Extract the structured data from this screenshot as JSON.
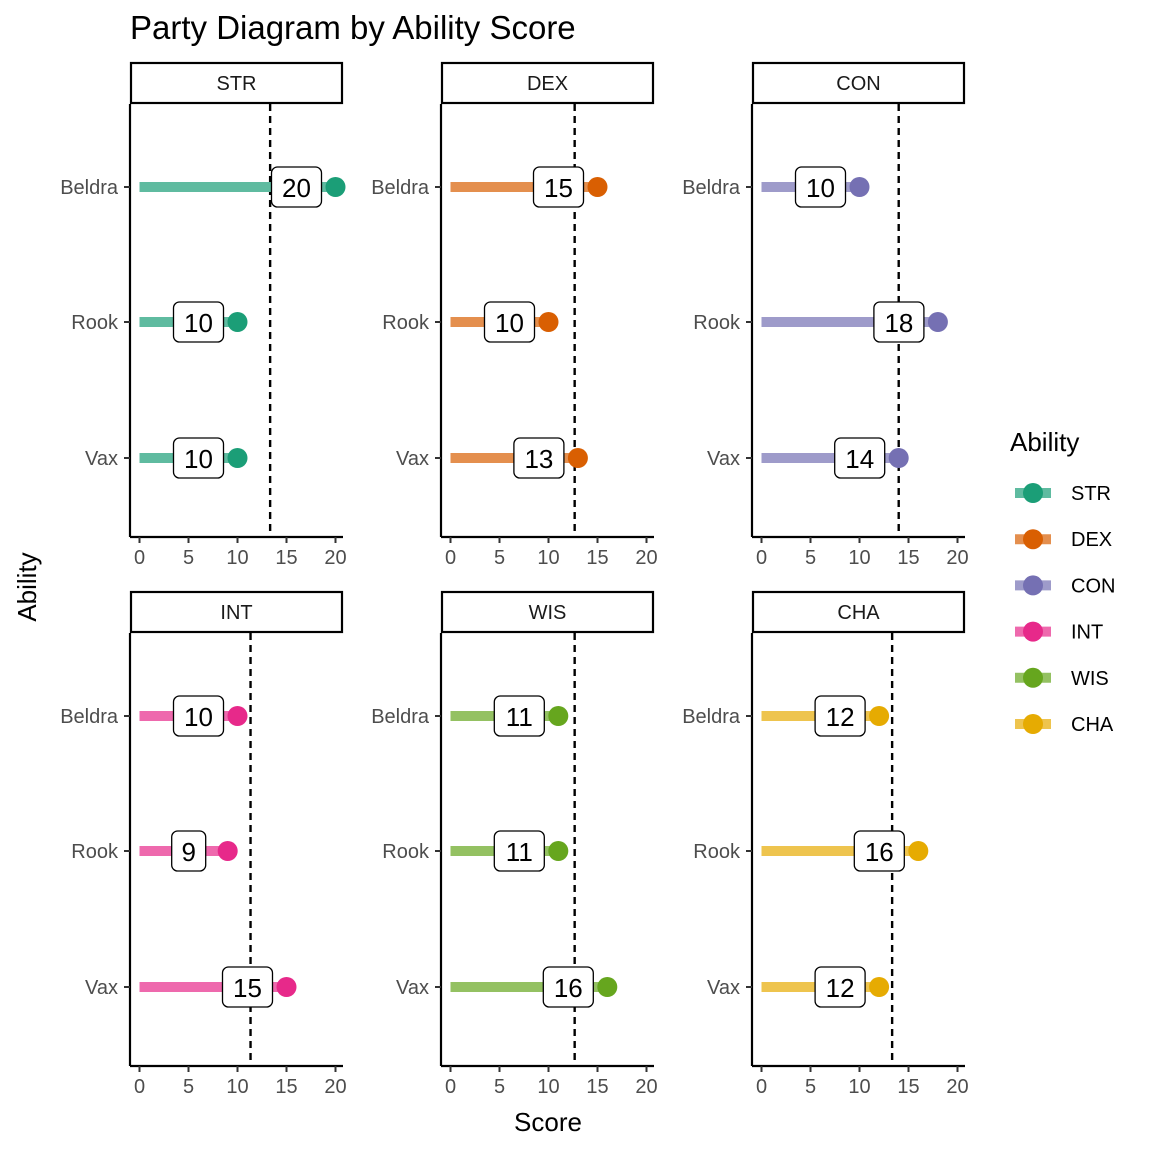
{
  "chart_data": {
    "type": "lollipop",
    "title": "Party Diagram by Ability Score",
    "xlabel": "Score",
    "ylabel": "Ability",
    "xlim": [
      0,
      20
    ],
    "x_ticks": [
      "0",
      "5",
      "10",
      "15",
      "20"
    ],
    "categories": [
      "Beldra",
      "Rook",
      "Vax"
    ],
    "legend": {
      "title": "Ability",
      "placement": "right",
      "entries": [
        "STR",
        "DEX",
        "CON",
        "INT",
        "WIS",
        "CHA"
      ]
    },
    "series": [
      {
        "name": "STR",
        "values": [
          20,
          10,
          10
        ],
        "mean": 13.33,
        "color": "#1b9e77"
      },
      {
        "name": "DEX",
        "values": [
          15,
          10,
          13
        ],
        "mean": 12.67,
        "color": "#d95f02"
      },
      {
        "name": "CON",
        "values": [
          10,
          18,
          14
        ],
        "mean": 14.0,
        "color": "#7570b3"
      },
      {
        "name": "INT",
        "values": [
          10,
          9,
          15
        ],
        "mean": 11.33,
        "color": "#e7298a"
      },
      {
        "name": "WIS",
        "values": [
          11,
          11,
          16
        ],
        "mean": 12.67,
        "color": "#66a61e"
      },
      {
        "name": "CHA",
        "values": [
          12,
          16,
          12
        ],
        "mean": 13.33,
        "color": "#e6ab02"
      }
    ]
  }
}
